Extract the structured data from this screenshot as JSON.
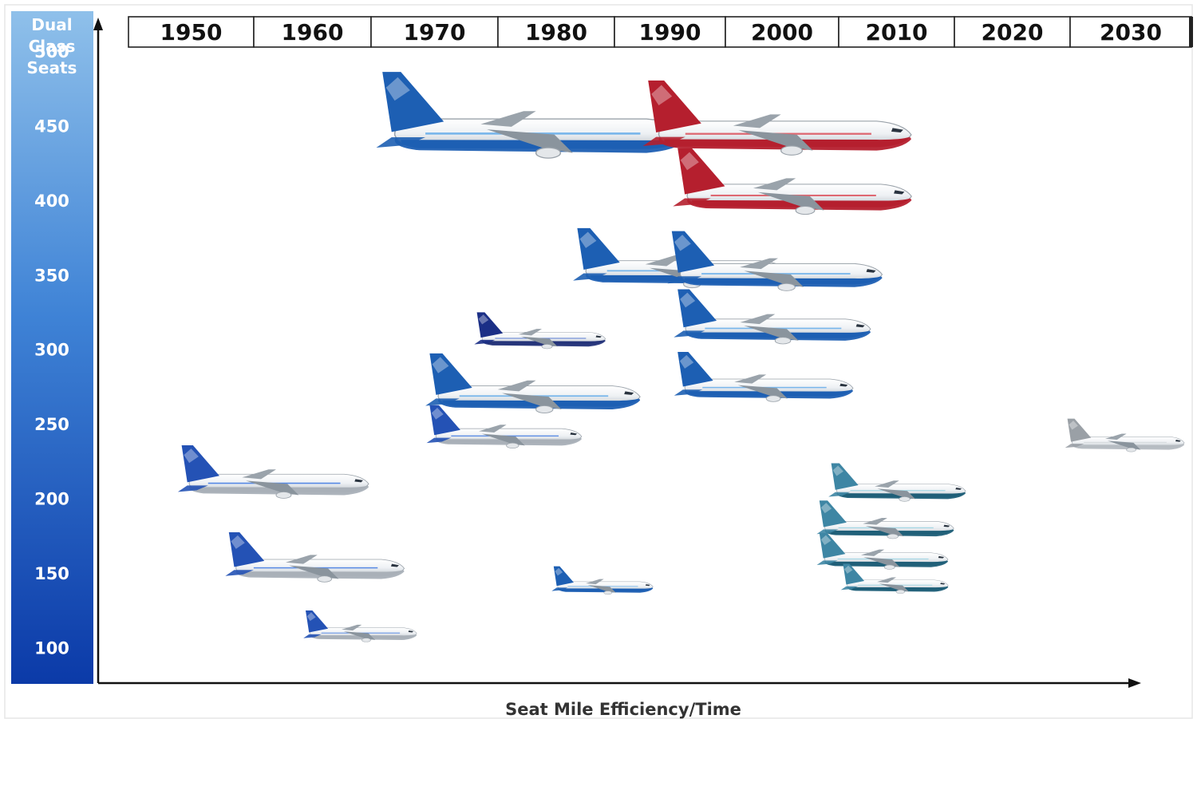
{
  "chart_data": {
    "type": "scatter",
    "ylabel_lines": [
      "Dual",
      "Class",
      "Seats"
    ],
    "xlabel": "Seat Mile Efficiency/Time",
    "y_ticks": [
      500,
      450,
      400,
      350,
      300,
      250,
      200,
      150,
      100
    ],
    "ylim": [
      75,
      530
    ],
    "x_decades": [
      "1950",
      "1960",
      "1970",
      "1980",
      "1990",
      "2000",
      "2010",
      "2020",
      "2030"
    ],
    "xlim": [
      1945,
      2035
    ],
    "legend": "none",
    "grid": false,
    "colors": {
      "axis_gradient_top": "#8fc0ea",
      "axis_gradient_bottom": "#0b3aa8",
      "boeing_blue": "#1d5fb3",
      "boeing_red": "#b51f2e",
      "concept_gray": "#9aa0a6"
    },
    "points": [
      {
        "x": 1966.5,
        "x_end": 1992.5,
        "y": 451,
        "livery": "blue",
        "scale": 1.25
      },
      {
        "x": 1989.0,
        "x_end": 2011.5,
        "y": 450,
        "livery": "red",
        "scale": 1.1
      },
      {
        "x": 1991.5,
        "x_end": 2011.5,
        "y": 408,
        "livery": "red",
        "scale": 1.1
      },
      {
        "x": 1983.0,
        "x_end": 2001.0,
        "y": 357,
        "livery": "blue",
        "scale": 1.0
      },
      {
        "x": 1991.0,
        "x_end": 2009.0,
        "y": 355,
        "livery": "blue",
        "scale": 0.92
      },
      {
        "x": 1991.5,
        "x_end": 2008.0,
        "y": 318,
        "livery": "blue",
        "scale": 0.88
      },
      {
        "x": 1974.5,
        "x_end": 1985.5,
        "y": 310,
        "livery": "trijet",
        "scale": 0.92
      },
      {
        "x": 1991.5,
        "x_end": 2006.5,
        "y": 278,
        "livery": "blue",
        "scale": 0.84
      },
      {
        "x": 1970.5,
        "x_end": 1988.5,
        "y": 273,
        "livery": "blue",
        "scale": 0.9
      },
      {
        "x": 1970.5,
        "x_end": 1983.5,
        "y": 245,
        "livery": "classic",
        "scale": 0.82
      },
      {
        "x": 2024.5,
        "x_end": 2034.5,
        "y": 240,
        "livery": "gray",
        "scale": 0.8
      },
      {
        "x": 1949.5,
        "x_end": 1965.5,
        "y": 214,
        "livery": "classic",
        "scale": 0.9
      },
      {
        "x": 2004.5,
        "x_end": 2016.0,
        "y": 208,
        "livery": "teal",
        "scale": 0.65
      },
      {
        "x": 2003.5,
        "x_end": 2015.0,
        "y": 183,
        "livery": "teal",
        "scale": 0.62
      },
      {
        "x": 2003.5,
        "x_end": 2014.5,
        "y": 162,
        "livery": "teal",
        "scale": 0.6
      },
      {
        "x": 2005.5,
        "x_end": 2014.5,
        "y": 144,
        "livery": "teal",
        "scale": 0.6
      },
      {
        "x": 1953.5,
        "x_end": 1968.5,
        "y": 157,
        "livery": "classic",
        "scale": 0.82
      },
      {
        "x": 1981.0,
        "x_end": 1989.5,
        "y": 143,
        "livery": "blue",
        "scale": 0.7
      },
      {
        "x": 1960.0,
        "x_end": 1969.5,
        "y": 112,
        "livery": "classic",
        "scale": 0.65
      }
    ]
  }
}
